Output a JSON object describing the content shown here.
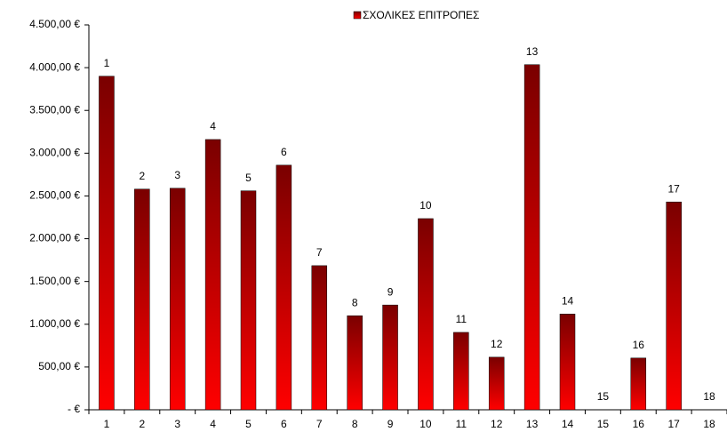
{
  "chart_data": {
    "type": "bar",
    "categories": [
      "1",
      "2",
      "3",
      "4",
      "5",
      "6",
      "7",
      "8",
      "9",
      "10",
      "11",
      "12",
      "13",
      "14",
      "15",
      "16",
      "17",
      "18"
    ],
    "series": [
      {
        "name": "ΣΧΟΛΙΚΕΣ ΕΠΙΤΡΟΠΕΣ",
        "color": "#ff0000",
        "color_top": "#7a0000",
        "values": [
          3900,
          2580,
          2590,
          3160,
          2560,
          2860,
          1685,
          1100,
          1225,
          2235,
          905,
          615,
          4035,
          1120,
          0,
          605,
          2430,
          0
        ]
      }
    ],
    "ylim": [
      0,
      4500
    ],
    "yticks": [
      {
        "value": 0,
        "label": "-   €"
      },
      {
        "value": 500,
        "label": "500,00 €"
      },
      {
        "value": 1000,
        "label": "1.000,00 €"
      },
      {
        "value": 1500,
        "label": "1.500,00 €"
      },
      {
        "value": 2000,
        "label": "2.000,00 €"
      },
      {
        "value": 2500,
        "label": "2.500,00 €"
      },
      {
        "value": 3000,
        "label": "3.000,00 €"
      },
      {
        "value": 3500,
        "label": "3.500,00 €"
      },
      {
        "value": 4000,
        "label": "4.000,00 €"
      },
      {
        "value": 4500,
        "label": "4.500,00 €"
      }
    ],
    "legend": "top",
    "grid": false
  }
}
